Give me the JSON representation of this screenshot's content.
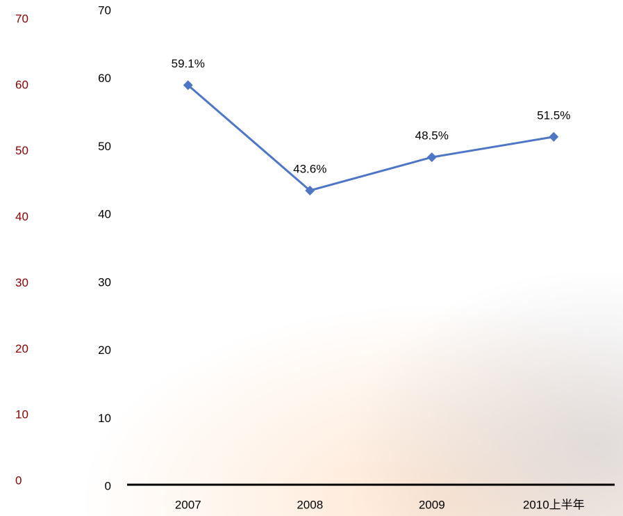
{
  "chart_data": {
    "type": "line",
    "categories": [
      "2007",
      "2008",
      "2009",
      "2010上半年"
    ],
    "series": [
      {
        "color": "#4f76c6",
        "values": [
          59.1,
          43.6,
          48.5,
          51.5
        ],
        "value_labels": [
          "59.1%",
          "43.6%",
          "48.5%",
          "51.5%"
        ]
      }
    ],
    "ylim": [
      0,
      70
    ],
    "yticks": [
      0,
      10,
      20,
      30,
      40,
      50,
      60,
      70
    ],
    "y2lim": [
      0,
      70
    ],
    "y2ticks": [
      0,
      10,
      20,
      30,
      40,
      50,
      60,
      70
    ],
    "y2color": "#8b0000"
  }
}
